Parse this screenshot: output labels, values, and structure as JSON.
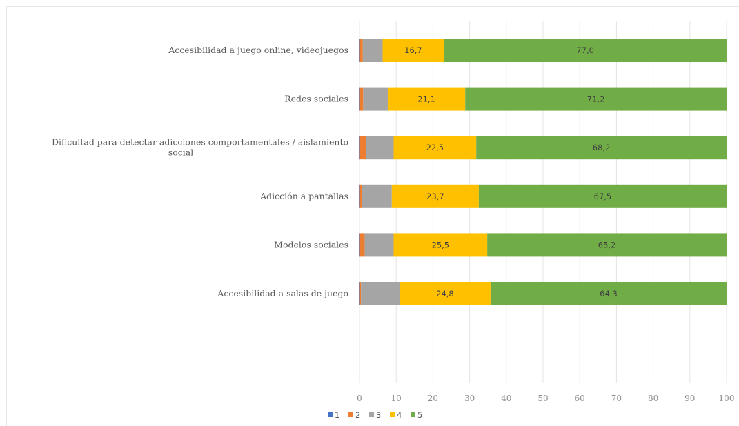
{
  "chart_data": {
    "type": "bar",
    "orientation": "horizontal",
    "stacked": true,
    "title": "",
    "xlabel": "",
    "ylabel": "",
    "xlim": [
      0,
      100
    ],
    "x_ticks": [
      "0",
      "10",
      "20",
      "30",
      "40",
      "50",
      "60",
      "70",
      "80",
      "90",
      "100"
    ],
    "grid": true,
    "legend_position": "bottom",
    "categories": [
      {
        "lines": [
          "Accesibilidad a juego online, videojuegos"
        ]
      },
      {
        "lines": [
          "Redes sociales"
        ]
      },
      {
        "lines": [
          "Dificultad para detectar adicciones comportamentales / aislamiento",
          "social"
        ]
      },
      {
        "lines": [
          "Adicción a pantallas"
        ]
      },
      {
        "lines": [
          "Modelos sociales"
        ]
      },
      {
        "lines": [
          "Accesibilidad a salas de juego"
        ]
      }
    ],
    "series": [
      {
        "name": "1",
        "color": "#4472c4",
        "values": [
          0.1,
          0.1,
          0.1,
          0.1,
          0.1,
          0.1
        ],
        "labels": [
          "",
          "",
          "",
          "",
          "",
          ""
        ]
      },
      {
        "name": "2",
        "color": "#ed7d31",
        "values": [
          0.8,
          0.9,
          1.6,
          0.6,
          1.3,
          0.3
        ],
        "labels": [
          "",
          "",
          "",
          "",
          "",
          ""
        ]
      },
      {
        "name": "3",
        "color": "#a5a5a5",
        "values": [
          5.4,
          6.7,
          7.6,
          8.1,
          7.9,
          10.5
        ],
        "labels": [
          "",
          "",
          "",
          "",
          "",
          ""
        ]
      },
      {
        "name": "4",
        "color": "#ffc000",
        "values": [
          16.7,
          21.1,
          22.5,
          23.7,
          25.5,
          24.8
        ],
        "labels": [
          "16,7",
          "21,1",
          "22,5",
          "23,7",
          "25,5",
          "24,8"
        ]
      },
      {
        "name": "5",
        "color": "#70ad47",
        "values": [
          77.0,
          71.2,
          68.2,
          67.5,
          65.2,
          64.3
        ],
        "labels": [
          "77,0",
          "71,2",
          "68,2",
          "67,5",
          "65,2",
          "64,3"
        ]
      }
    ]
  }
}
